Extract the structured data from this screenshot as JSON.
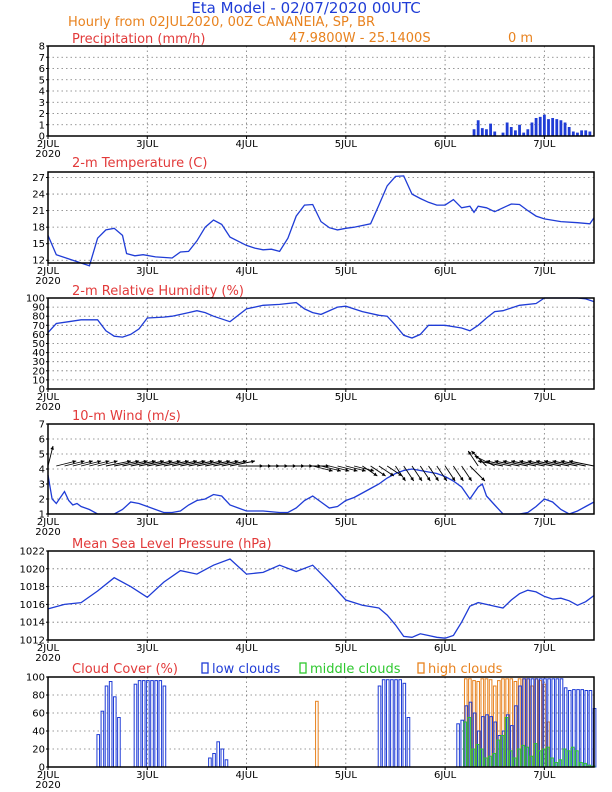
{
  "header": {
    "title": "Eta Model - 02/07/2020 00UTC",
    "subtitle": "Hourly from 02JUL2020, 00Z  CANANEIA, SP, BR",
    "coords": "47.9800W - 25.1400S",
    "elevation": "0  m"
  },
  "colors": {
    "accent": "#1f3cd6",
    "title_red": "#e23a3a",
    "orange": "#e8821e",
    "green": "#2ec82e"
  },
  "x_axis": {
    "tick_labels": [
      "2JUL",
      "3JUL",
      "4JUL",
      "5JUL",
      "6JUL",
      "7JUL"
    ],
    "year_label": "2020",
    "range_hours": [
      0,
      132
    ]
  },
  "chart_data": [
    {
      "id": "precip",
      "type": "bar",
      "title": "Precipitation (mm/h)",
      "ylim": [
        0,
        8
      ],
      "yticks": [
        0,
        1,
        2,
        3,
        4,
        5,
        6,
        7,
        8
      ],
      "x": [
        103,
        104,
        105,
        106,
        107,
        108,
        110,
        111,
        112,
        113,
        114,
        115,
        116,
        117,
        118,
        119,
        120,
        121,
        122,
        123,
        124,
        125,
        126,
        127,
        128,
        129,
        130,
        131
      ],
      "values": [
        0.6,
        1.4,
        0.7,
        0.6,
        1.1,
        0.4,
        0.3,
        1.2,
        0.8,
        0.5,
        1.0,
        0.3,
        0.6,
        1.2,
        1.6,
        1.7,
        1.9,
        1.5,
        1.6,
        1.5,
        1.4,
        1.2,
        0.8,
        0.4,
        0.3,
        0.5,
        0.5,
        0.4
      ]
    },
    {
      "id": "temp",
      "type": "line",
      "title": "2-m Temperature (C)",
      "ylim": [
        11.5,
        28
      ],
      "yticks": [
        12,
        15,
        18,
        21,
        24,
        27
      ],
      "x": [
        0,
        2,
        6,
        10,
        12,
        14,
        16,
        18,
        19,
        21,
        23,
        26,
        30,
        32,
        34,
        36,
        38,
        40,
        42,
        44,
        48,
        50,
        52,
        54,
        56,
        58,
        60,
        62,
        64,
        66,
        68,
        70,
        72,
        74,
        76,
        78,
        80,
        82,
        84,
        86,
        88,
        90,
        92,
        94,
        96,
        98,
        100,
        102,
        103,
        104,
        106,
        108,
        110,
        112,
        114,
        116,
        118,
        120,
        124,
        128,
        131,
        132
      ],
      "y": [
        16.5,
        13,
        12,
        11,
        16,
        17.5,
        17.8,
        16.5,
        13.2,
        12.8,
        13,
        12.6,
        12.4,
        13.5,
        13.6,
        15.5,
        18,
        19.3,
        18.5,
        16.2,
        14.7,
        14.2,
        13.9,
        14,
        13.6,
        16,
        20,
        22,
        22.1,
        19,
        17.9,
        17.5,
        17.8,
        18,
        18.3,
        18.6,
        22,
        25.5,
        27.2,
        27.3,
        24,
        23.2,
        22.5,
        22,
        22,
        23,
        21.5,
        21.8,
        20.7,
        21.8,
        21.5,
        20.8,
        21.5,
        22.2,
        22.1,
        21,
        20,
        19.5,
        19,
        18.8,
        18.6,
        19.7
      ]
    },
    {
      "id": "rh",
      "type": "line",
      "title": "2-m Relative Humidity (%)",
      "ylim": [
        0,
        100
      ],
      "yticks": [
        0,
        10,
        20,
        30,
        40,
        50,
        60,
        70,
        80,
        90,
        100
      ],
      "x": [
        0,
        2,
        5,
        8,
        12,
        14,
        16,
        18,
        20,
        22,
        24,
        28,
        30,
        34,
        36,
        38,
        40,
        44,
        48,
        52,
        56,
        60,
        62,
        64,
        66,
        70,
        72,
        76,
        80,
        82,
        84,
        86,
        88,
        90,
        92,
        96,
        100,
        102,
        104,
        106,
        108,
        110,
        114,
        118,
        120,
        124,
        128,
        130,
        132
      ],
      "y": [
        62,
        72,
        74,
        76,
        76,
        64,
        58,
        57,
        60,
        66,
        78,
        79,
        80,
        84,
        86,
        84,
        80,
        74,
        88,
        92,
        93,
        95,
        88,
        84,
        82,
        90,
        91,
        85,
        81,
        80,
        70,
        59,
        56,
        60,
        70,
        70,
        67,
        64,
        70,
        78,
        85,
        86,
        92,
        94,
        100,
        100,
        100,
        99,
        96
      ]
    },
    {
      "id": "wind",
      "type": "line",
      "title": "10-m Wind (m/s)",
      "ylim": [
        1,
        7
      ],
      "yticks": [
        1,
        2,
        3,
        4,
        5,
        6,
        7
      ],
      "x": [
        0,
        1,
        2,
        3,
        4,
        5,
        6,
        7,
        8,
        10,
        12,
        14,
        16,
        18,
        20,
        22,
        24,
        26,
        28,
        30,
        32,
        34,
        36,
        38,
        40,
        42,
        44,
        46,
        48,
        52,
        56,
        58,
        60,
        62,
        64,
        66,
        68,
        70,
        72,
        74,
        76,
        78,
        80,
        82,
        84,
        86,
        88,
        90,
        92,
        94,
        96,
        98,
        100,
        102,
        103,
        104,
        105,
        106,
        108,
        110,
        112,
        114,
        116,
        118,
        120,
        122,
        124,
        126,
        128,
        130,
        132
      ],
      "y": [
        3.6,
        2.0,
        1.7,
        2.1,
        2.5,
        1.9,
        1.6,
        1.7,
        1.5,
        1.3,
        1.0,
        1.0,
        1.0,
        1.3,
        1.8,
        1.7,
        1.5,
        1.3,
        1.1,
        1.1,
        1.2,
        1.6,
        1.9,
        2.0,
        2.3,
        2.2,
        1.6,
        1.4,
        1.2,
        1.2,
        1.1,
        1.1,
        1.4,
        1.9,
        2.2,
        1.8,
        1.4,
        1.5,
        1.9,
        2.1,
        2.4,
        2.7,
        3.0,
        3.4,
        3.7,
        3.9,
        4.0,
        3.9,
        3.8,
        3.7,
        3.5,
        3.2,
        2.8,
        2.0,
        2.4,
        2.8,
        3.0,
        2.2,
        1.6,
        1.0,
        1.0,
        1.0,
        1.1,
        1.5,
        2.0,
        1.8,
        1.3,
        1.0,
        1.2,
        1.5,
        1.8
      ],
      "vectors_x": [
        0,
        2,
        4,
        6,
        8,
        10,
        12,
        14,
        16,
        18,
        20,
        22,
        24,
        26,
        28,
        30,
        32,
        34,
        36,
        38,
        40,
        42,
        44,
        46,
        48,
        50,
        52,
        54,
        56,
        58,
        60,
        62,
        64,
        66,
        68,
        70,
        72,
        74,
        76,
        78,
        80,
        82,
        84,
        86,
        88,
        90,
        92,
        94,
        96,
        98,
        100,
        102,
        104,
        106,
        108,
        110,
        112,
        114,
        116,
        118,
        120,
        122,
        124,
        126,
        128,
        130,
        132
      ],
      "vectors_u": [
        1,
        4,
        4,
        4,
        4,
        4,
        4,
        5,
        5,
        5,
        5,
        5,
        5,
        5,
        5,
        5,
        5,
        5,
        5,
        5,
        5,
        5,
        5,
        5,
        5,
        5,
        5,
        5,
        5,
        5,
        5,
        5,
        4,
        4,
        4,
        4,
        4,
        4,
        3,
        3,
        3,
        3,
        2,
        2,
        2,
        2,
        2,
        2,
        2,
        2,
        2,
        3,
        -2,
        -3,
        -4,
        -5,
        -5,
        -5,
        -5,
        -5,
        -5,
        -5,
        -5,
        -5,
        -5,
        -5,
        -5
      ],
      "vectors_v": [
        4,
        1,
        1,
        1,
        1,
        1,
        1,
        1,
        1,
        1,
        1,
        1,
        1,
        1,
        1,
        1,
        1,
        1,
        1,
        1,
        1,
        1,
        1,
        0,
        0,
        0,
        0,
        0,
        0,
        0,
        0,
        0,
        -1,
        -1,
        -1,
        -1,
        -1,
        -1,
        -2,
        -2,
        -2,
        -2,
        -3,
        -3,
        -3,
        -3,
        -3,
        -3,
        -3,
        -3,
        -3,
        -3,
        3,
        3,
        2,
        1,
        1,
        1,
        1,
        1,
        1,
        1,
        1,
        1,
        1,
        1,
        1
      ]
    },
    {
      "id": "mslp",
      "type": "line",
      "title": "Mean Sea Level Pressure (hPa)",
      "ylim": [
        1012,
        1022
      ],
      "yticks": [
        1012,
        1014,
        1016,
        1018,
        1020,
        1022
      ],
      "x": [
        0,
        4,
        8,
        12,
        16,
        20,
        24,
        28,
        32,
        36,
        40,
        44,
        48,
        52,
        56,
        60,
        64,
        68,
        72,
        76,
        80,
        82,
        84,
        86,
        88,
        90,
        92,
        94,
        96,
        98,
        100,
        102,
        104,
        106,
        108,
        110,
        112,
        114,
        116,
        118,
        120,
        122,
        124,
        126,
        128,
        130,
        132
      ],
      "y": [
        1015.5,
        1016,
        1016.2,
        1017.5,
        1019,
        1018,
        1016.8,
        1018.5,
        1019.8,
        1019.4,
        1020.4,
        1021.1,
        1019.4,
        1019.6,
        1020.4,
        1019.7,
        1020.4,
        1018.5,
        1016.5,
        1015.9,
        1015.6,
        1014.8,
        1013.7,
        1012.4,
        1012.3,
        1012.7,
        1012.5,
        1012.3,
        1012.2,
        1012.5,
        1014,
        1015.8,
        1016.2,
        1016,
        1015.8,
        1015.6,
        1016.5,
        1017.2,
        1017.6,
        1017.4,
        1016.9,
        1016.6,
        1016.7,
        1016.4,
        1015.9,
        1016.3,
        1017
      ]
    },
    {
      "id": "cloud",
      "type": "bar",
      "title": "Cloud Cover (%)",
      "legend": [
        "low clouds",
        "middle clouds",
        "high clouds"
      ],
      "ylim": [
        0,
        100
      ],
      "yticks": [
        0,
        20,
        40,
        60,
        80,
        100
      ],
      "series": [
        {
          "name": "low clouds",
          "x": [
            12,
            13,
            14,
            15,
            16,
            17,
            21,
            22,
            23,
            24,
            25,
            26,
            27,
            28,
            39,
            40,
            41,
            42,
            43,
            80,
            81,
            82,
            83,
            84,
            85,
            86,
            87,
            99,
            100,
            101,
            102,
            103,
            104,
            105,
            106,
            107,
            108,
            109,
            110,
            111,
            112,
            113,
            114,
            115,
            116,
            117,
            118,
            119,
            120,
            121,
            122,
            123,
            124,
            125,
            126,
            127,
            128,
            129,
            130,
            131,
            132
          ],
          "values": [
            36,
            62,
            90,
            95,
            78,
            55,
            92,
            96,
            96,
            96,
            96,
            96,
            96,
            90,
            10,
            15,
            28,
            20,
            8,
            90,
            97,
            97,
            97,
            97,
            97,
            93,
            55,
            48,
            52,
            68,
            72,
            60,
            40,
            56,
            58,
            56,
            50,
            35,
            40,
            58,
            46,
            68,
            90,
            98,
            98,
            98,
            98,
            98,
            98,
            98,
            98,
            98,
            98,
            88,
            85,
            86,
            86,
            86,
            85,
            85,
            65
          ]
        },
        {
          "name": "middle clouds",
          "x": [
            101,
            102,
            103,
            104,
            105,
            106,
            107,
            108,
            109,
            110,
            111,
            112,
            113,
            114,
            115,
            116,
            117,
            118,
            119,
            120,
            121,
            122,
            123,
            124,
            125,
            126,
            127,
            128,
            129,
            130,
            131,
            132
          ],
          "values": [
            50,
            55,
            20,
            25,
            20,
            10,
            12,
            15,
            30,
            35,
            55,
            18,
            10,
            20,
            24,
            22,
            12,
            26,
            18,
            20,
            22,
            10,
            5,
            8,
            20,
            18,
            22,
            18,
            5,
            4,
            2,
            1
          ]
        },
        {
          "name": "high clouds",
          "x": [
            65,
            101,
            102,
            103,
            104,
            105,
            106,
            107,
            108,
            109,
            110,
            111,
            112,
            113,
            114,
            115,
            116,
            117,
            118,
            119,
            120,
            121
          ],
          "values": [
            73,
            98,
            98,
            96,
            95,
            98,
            98,
            97,
            90,
            96,
            98,
            98,
            98,
            95,
            98,
            98,
            98,
            90,
            98,
            96,
            92,
            50
          ]
        }
      ]
    }
  ]
}
